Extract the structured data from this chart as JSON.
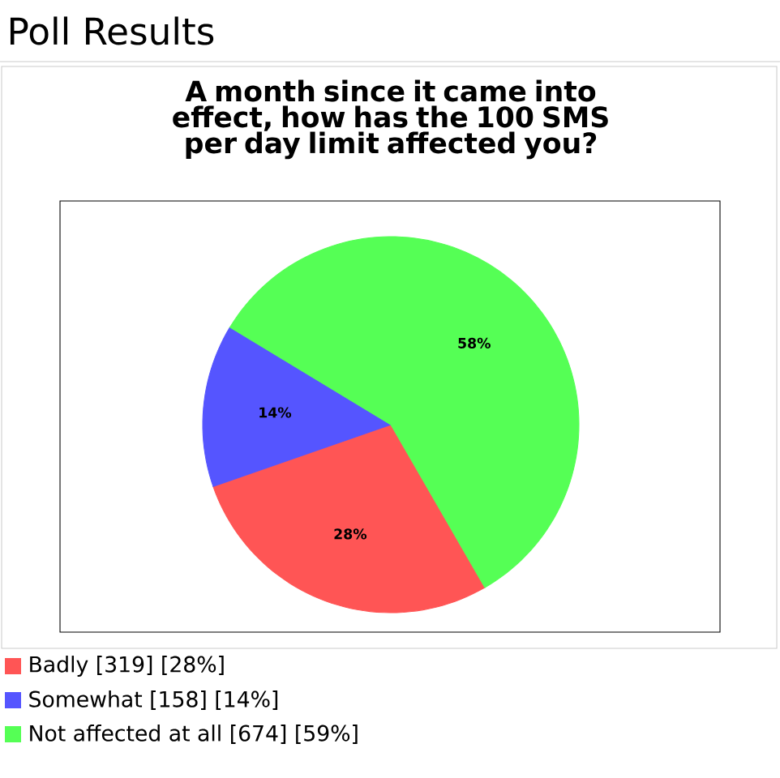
{
  "chart_data": {
    "type": "pie",
    "title": "Poll Results",
    "subtitle": "A month since it came into effect, how has the 100 SMS per day limit affected you?",
    "categories": [
      "Badly [319] [28%]",
      "Somewhat [158] [14%]",
      "Not affected at all [674] [59%]"
    ],
    "values": [
      28,
      14,
      58
    ],
    "colors": [
      "#ff5555",
      "#5555ff",
      "#55ff55"
    ],
    "value_labels": [
      "28%",
      "14%",
      "58%"
    ],
    "legend": "bottom"
  }
}
